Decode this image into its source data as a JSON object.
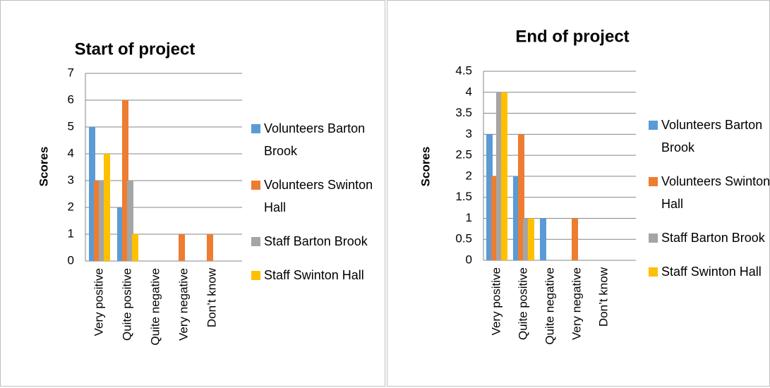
{
  "chart_data": [
    {
      "type": "bar",
      "title": "Start of project",
      "y_label": "Scores",
      "categories": [
        "Very positive",
        "Quite positive",
        "Quite negative",
        "Very negative",
        "Don’t know"
      ],
      "series": [
        {
          "name": "Volunteers Barton Brook",
          "color": "#5b9bd5",
          "values": [
            5,
            2,
            0,
            0,
            0
          ]
        },
        {
          "name": "Volunteers Swinton Hall",
          "color": "#ed7d31",
          "values": [
            3,
            6,
            0,
            1,
            1
          ]
        },
        {
          "name": "Staff Barton Brook",
          "color": "#a5a5a5",
          "values": [
            3,
            3,
            0,
            0,
            0
          ]
        },
        {
          "name": "Staff Swinton Hall",
          "color": "#ffc000",
          "values": [
            4,
            1,
            0,
            0,
            0
          ]
        }
      ],
      "ylim": [
        0,
        7
      ],
      "yticks": [
        0,
        1,
        2,
        3,
        4,
        5,
        6,
        7
      ],
      "grid": true,
      "legend": "right"
    },
    {
      "type": "bar",
      "title": "End of project",
      "y_label": "Scores",
      "categories": [
        "Very positive",
        "Quite positive",
        "Quite negative",
        "Very negative",
        "Don’t know"
      ],
      "series": [
        {
          "name": "Volunteers Barton Brook",
          "color": "#5b9bd5",
          "values": [
            3,
            2,
            1,
            0,
            0
          ]
        },
        {
          "name": "Volunteers Swinton Hall",
          "color": "#ed7d31",
          "values": [
            2,
            3,
            0,
            1,
            0
          ]
        },
        {
          "name": "Staff Barton Brook",
          "color": "#a5a5a5",
          "values": [
            4,
            1,
            0,
            0,
            0
          ]
        },
        {
          "name": "Staff Swinton Hall",
          "color": "#ffc000",
          "values": [
            4,
            1,
            0,
            0,
            0
          ]
        }
      ],
      "ylim": [
        0,
        4.5
      ],
      "yticks": [
        0,
        0.5,
        1,
        1.5,
        2,
        2.5,
        3,
        3.5,
        4,
        4.5
      ],
      "grid": true,
      "legend": "right"
    }
  ]
}
